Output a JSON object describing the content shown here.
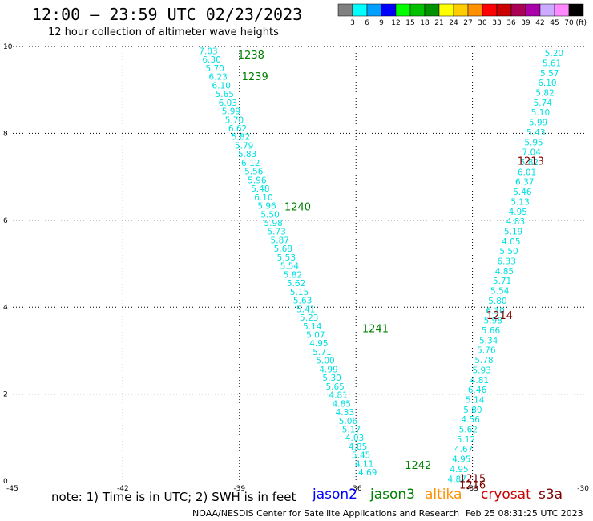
{
  "header": {
    "title": "12:00 – 23:59 UTC 02/23/2023",
    "subtitle": "12 hour collection of altimeter wave heights"
  },
  "colorbar": {
    "bins": [
      {
        "label": "3",
        "color": "#808080"
      },
      {
        "label": "6",
        "color": "#00ffff"
      },
      {
        "label": "9",
        "color": "#00a0ff"
      },
      {
        "label": "12",
        "color": "#0000ff"
      },
      {
        "label": "15",
        "color": "#00ff00"
      },
      {
        "label": "18",
        "color": "#00c000"
      },
      {
        "label": "21",
        "color": "#009000"
      },
      {
        "label": "24",
        "color": "#ffff00"
      },
      {
        "label": "27",
        "color": "#ffcc00"
      },
      {
        "label": "30",
        "color": "#ff9000"
      },
      {
        "label": "33",
        "color": "#ff0000"
      },
      {
        "label": "36",
        "color": "#cc0000"
      },
      {
        "label": "39",
        "color": "#aa0055"
      },
      {
        "label": "42",
        "color": "#aa00aa"
      },
      {
        "label": "45",
        "color": "#ccaaff"
      },
      {
        "label": "70",
        "color": "#ff88ff"
      },
      {
        "label": "",
        "color": "#000000"
      }
    ],
    "unit": "(ft)"
  },
  "chart_data": {
    "type": "scatter",
    "xlim": [
      -45,
      -30
    ],
    "ylim": [
      0,
      10
    ],
    "x_ticks": [
      "-45",
      "-42",
      "-39",
      "-36",
      "-33",
      "-30"
    ],
    "y_ticks": [
      "0",
      "2",
      "4",
      "6",
      "8",
      "10"
    ],
    "grid": true,
    "point_color": "#00e0e0",
    "series": [
      {
        "name": "jason3",
        "x_start": -39.8,
        "y_start": 9.9,
        "x_end": -35.7,
        "y_end": 0.2,
        "values": [
          "7.03",
          "6.30",
          "5.70",
          "6.23",
          "6.10",
          "5.65",
          "6.03",
          "5.99",
          "5.70",
          "6.62",
          "5.82",
          "5.79",
          "5.83",
          "6.12",
          "5.56",
          "5.96",
          "5.48",
          "6.10",
          "5.96",
          "5.50",
          "5.98",
          "5.73",
          "5.87",
          "5.68",
          "5.53",
          "5.54",
          "5.82",
          "5.62",
          "5.15",
          "5.63",
          "5.41",
          "5.23",
          "5.14",
          "5.07",
          "4.95",
          "5.71",
          "5.00",
          "4.99",
          "5.30",
          "5.65",
          "4.81",
          "4.85",
          "4.33",
          "5.06",
          "5.17",
          "4.03",
          "4.85",
          "5.45",
          "4.11",
          "4.69"
        ]
      },
      {
        "name": "cryosat",
        "x_start": -30.9,
        "y_start": 9.85,
        "x_end": -33.4,
        "y_end": 0.05,
        "values": [
          "5.20",
          "5.61",
          "5.57",
          "6.10",
          "5.82",
          "5.74",
          "5.10",
          "5.99",
          "5.43",
          "5.95",
          "7.04",
          "5.82",
          "6.01",
          "6.37",
          "5.46",
          "5.13",
          "4.95",
          "4.83",
          "5.19",
          "4.05",
          "5.50",
          "6.33",
          "4.85",
          "5.71",
          "5.54",
          "5.80",
          "6.30",
          "5.98",
          "5.66",
          "5.34",
          "5.76",
          "5.78",
          "5.93",
          "4.81",
          "6.46",
          "5.14",
          "5.80",
          "4.56",
          "5.62",
          "5.12",
          "4.67",
          "4.95",
          "4.95",
          "4.87"
        ]
      }
    ],
    "pass_labels": [
      {
        "label": "1238",
        "x": -38.7,
        "y": 9.8,
        "color": "#008000"
      },
      {
        "label": "1239",
        "x": -38.6,
        "y": 9.3,
        "color": "#008000"
      },
      {
        "label": "1240",
        "x": -37.5,
        "y": 6.3,
        "color": "#008000"
      },
      {
        "label": "1241",
        "x": -35.5,
        "y": 3.5,
        "color": "#008000"
      },
      {
        "label": "1242",
        "x": -34.4,
        "y": 0.35,
        "color": "#008000"
      },
      {
        "label": "1213",
        "x": -31.5,
        "y": 7.35,
        "color": "#800000"
      },
      {
        "label": "1214",
        "x": -32.3,
        "y": 3.8,
        "color": "#800000"
      },
      {
        "label": "1215",
        "x": -33.0,
        "y": 0.05,
        "color": "#800000"
      },
      {
        "label": "1216",
        "x": -33.0,
        "y": -0.1,
        "color": "#800000"
      }
    ]
  },
  "footer": {
    "note": "note: 1) Time is in UTC; 2) SWH is in feet",
    "missions": [
      {
        "name": "jason2",
        "color": "#0000ff"
      },
      {
        "name": "jason3",
        "color": "#008000"
      },
      {
        "name": "altika",
        "color": "#ff9000"
      },
      {
        "name": "cryosat",
        "color": "#cc0000"
      },
      {
        "name": "s3a",
        "color": "#800000"
      }
    ],
    "credit": "NOAA/NESDIS Center for Satellite Applications and Research",
    "timestamp": "Feb 25 08:31:25 UTC 2023"
  }
}
